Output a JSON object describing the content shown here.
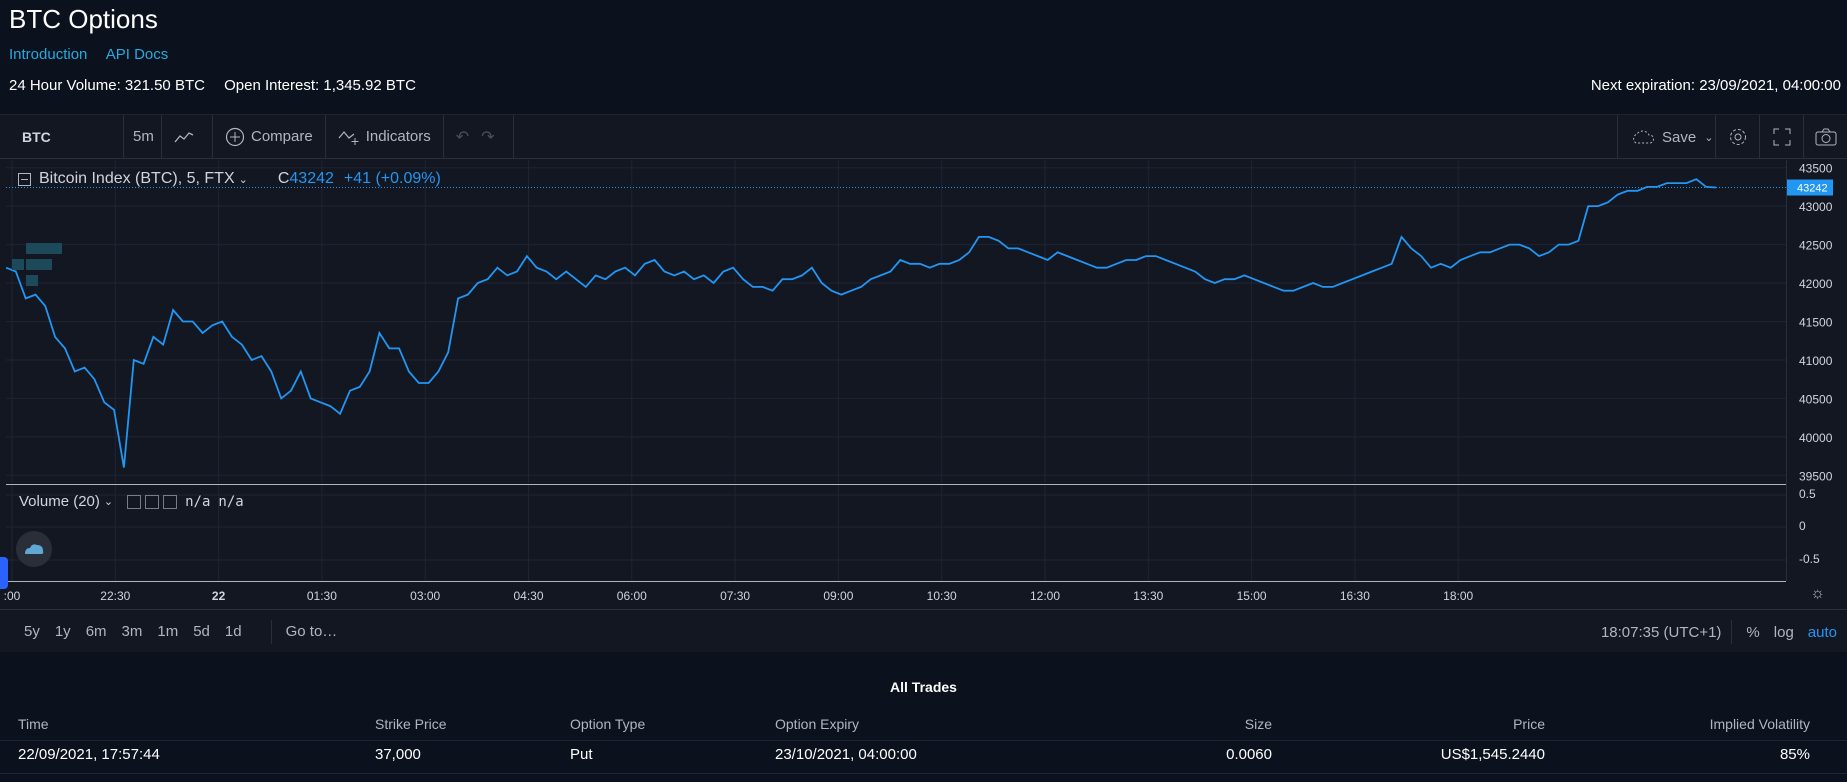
{
  "header": {
    "title": "BTC Options",
    "links": [
      "Introduction",
      "API Docs"
    ],
    "volume_24h": "24 Hour Volume: 321.50 BTC",
    "open_interest": "Open Interest: 1,345.92 BTC",
    "next_expiration": "Next expiration: 23/09/2021, 04:00:00"
  },
  "toolbar": {
    "symbol": "BTC",
    "interval": "5m",
    "compare": "Compare",
    "indicators": "Indicators",
    "save": "Save"
  },
  "legend": {
    "title": "Bitcoin Index (BTC), 5, FTX",
    "close_prefix": "C",
    "close": "43242",
    "change": "+41 (+0.09%)"
  },
  "volume": {
    "title": "Volume (20)",
    "value1": "n/a",
    "value2": "n/a"
  },
  "chart_data": {
    "type": "line",
    "title": "Bitcoin Index (BTC), 5, FTX",
    "last_price": 43242,
    "ylim": [
      39400,
      43600
    ],
    "yticks": [
      43500,
      43000,
      42500,
      42000,
      41500,
      41000,
      40500,
      40000,
      39500
    ],
    "ytick_labels": [
      "43500",
      "43000",
      "42500",
      "42000",
      "41500",
      "41000",
      "40500",
      "40000",
      "39500"
    ],
    "xticks": [
      ":00",
      "22:30",
      "22",
      "01:30",
      "03:00",
      "04:30",
      "06:00",
      "07:30",
      "09:00",
      "10:30",
      "12:00",
      "13:30",
      "15:00",
      "16:30",
      "18:00"
    ],
    "volume_ticks": [
      "0.5",
      "0",
      "-0.5"
    ],
    "grid": true,
    "line_color": "#2196f3",
    "series": [
      {
        "values": [
          42200,
          42150,
          41800,
          41850,
          41700,
          41300,
          41150,
          40850,
          40900,
          40750,
          40450,
          40350,
          39600,
          41000,
          40950,
          41300,
          41200,
          41650,
          41500,
          41500,
          41350,
          41450,
          41500,
          41300,
          41200,
          41000,
          41050,
          40850,
          40500,
          40600,
          40850,
          40500,
          40450,
          40400,
          40300,
          40600,
          40650,
          40850,
          41350,
          41150,
          41150,
          40850,
          40700,
          40700,
          40850,
          41100,
          41800,
          41850,
          42000,
          42050,
          42200,
          42100,
          42150,
          42350,
          42200,
          42150,
          42050,
          42150,
          42050,
          41950,
          42100,
          42050,
          42150,
          42200,
          42100,
          42250,
          42300,
          42150,
          42100,
          42150,
          42050,
          42100,
          42000,
          42150,
          42200,
          42050,
          41950,
          41950,
          41900,
          42050,
          42050,
          42100,
          42200,
          42000,
          41900,
          41850,
          41900,
          41950,
          42050,
          42100,
          42150,
          42300,
          42250,
          42250,
          42200,
          42250,
          42250,
          42300,
          42400,
          42600,
          42600,
          42550,
          42450,
          42450,
          42400,
          42350,
          42300,
          42400,
          42350,
          42300,
          42250,
          42200,
          42200,
          42250,
          42300,
          42300,
          42350,
          42350,
          42300,
          42250,
          42200,
          42150,
          42050,
          42000,
          42050,
          42050,
          42100,
          42050,
          42000,
          41950,
          41900,
          41900,
          41950,
          42000,
          41950,
          41950,
          42000,
          42050,
          42100,
          42150,
          42200,
          42250,
          42600,
          42450,
          42350,
          42200,
          42250,
          42200,
          42300,
          42350,
          42400,
          42400,
          42450,
          42500,
          42500,
          42450,
          42350,
          42400,
          42500,
          42500,
          42550,
          43000,
          43000,
          43050,
          43150,
          43200,
          43200,
          43250,
          43250,
          43300,
          43300,
          43300,
          43350,
          43250,
          43242
        ]
      }
    ]
  },
  "bottom_bar": {
    "ranges": [
      "5y",
      "1y",
      "6m",
      "3m",
      "1m",
      "5d",
      "1d"
    ],
    "goto": "Go to…",
    "clock": "18:07:35 (UTC+1)",
    "pct": "%",
    "log": "log",
    "auto": "auto"
  },
  "trades": {
    "title": "All Trades",
    "columns": [
      "Time",
      "Strike Price",
      "Option Type",
      "Option Expiry",
      "Size",
      "Price",
      "Implied Volatility"
    ],
    "rows": [
      [
        "22/09/2021, 17:57:44",
        "37,000",
        "Put",
        "23/10/2021, 04:00:00",
        "0.0060",
        "US$1,545.2440",
        "85%"
      ]
    ]
  }
}
